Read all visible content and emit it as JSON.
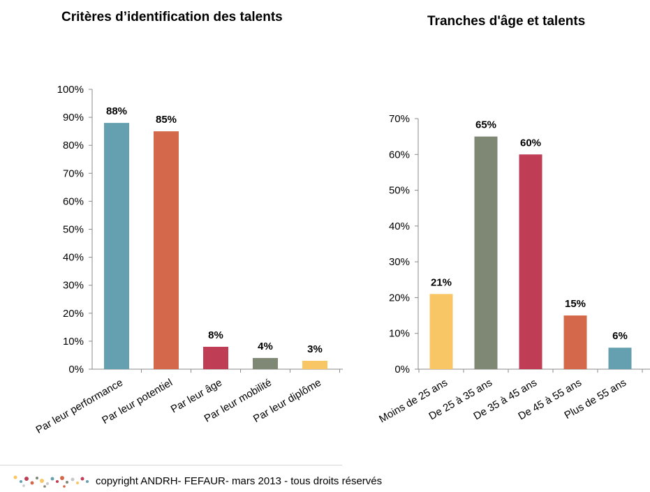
{
  "chart_data": [
    {
      "type": "bar",
      "title": "Critères d’identification des talents",
      "categories": [
        "Par leur performance",
        "Par leur potentiel",
        "Par leur âge",
        "Par leur mobilité",
        "Par leur diplôme"
      ],
      "values": [
        88,
        85,
        8,
        4,
        3
      ],
      "data_labels": [
        "88%",
        "85%",
        "8%",
        "4%",
        "3%"
      ],
      "colors": [
        "#64A0AF",
        "#D4684A",
        "#BF3D55",
        "#7E8874",
        "#F8C665"
      ],
      "ylim": [
        0,
        100
      ],
      "yticks": [
        "0%",
        "10%",
        "20%",
        "30%",
        "40%",
        "50%",
        "60%",
        "70%",
        "80%",
        "90%",
        "100%"
      ],
      "xlabel": "",
      "ylabel": ""
    },
    {
      "type": "bar",
      "title": "Tranches d'âge et talents",
      "categories": [
        "Moins de 25 ans",
        "De 25 à 35 ans",
        "De 35 à 45 ans",
        "De 45 à 55 ans",
        "Plus de 55 ans"
      ],
      "values": [
        21,
        65,
        60,
        15,
        6
      ],
      "data_labels": [
        "21%",
        "65%",
        "60%",
        "15%",
        "6%"
      ],
      "colors": [
        "#F8C665",
        "#7E8874",
        "#BF3D55",
        "#D4684A",
        "#64A0AF"
      ],
      "ylim": [
        0,
        70
      ],
      "yticks": [
        "0%",
        "10%",
        "20%",
        "30%",
        "40%",
        "50%",
        "60%",
        "70%"
      ],
      "xlabel": "",
      "ylabel": ""
    }
  ],
  "footer": {
    "copyright": "copyright  ANDRH- FEFAUR- mars 2013 - tous droits réservés",
    "logo_colors": [
      "#F8C665",
      "#64A0AF",
      "#BF3D55",
      "#D4684A",
      "#7E8874",
      "#C8C8C8"
    ]
  }
}
